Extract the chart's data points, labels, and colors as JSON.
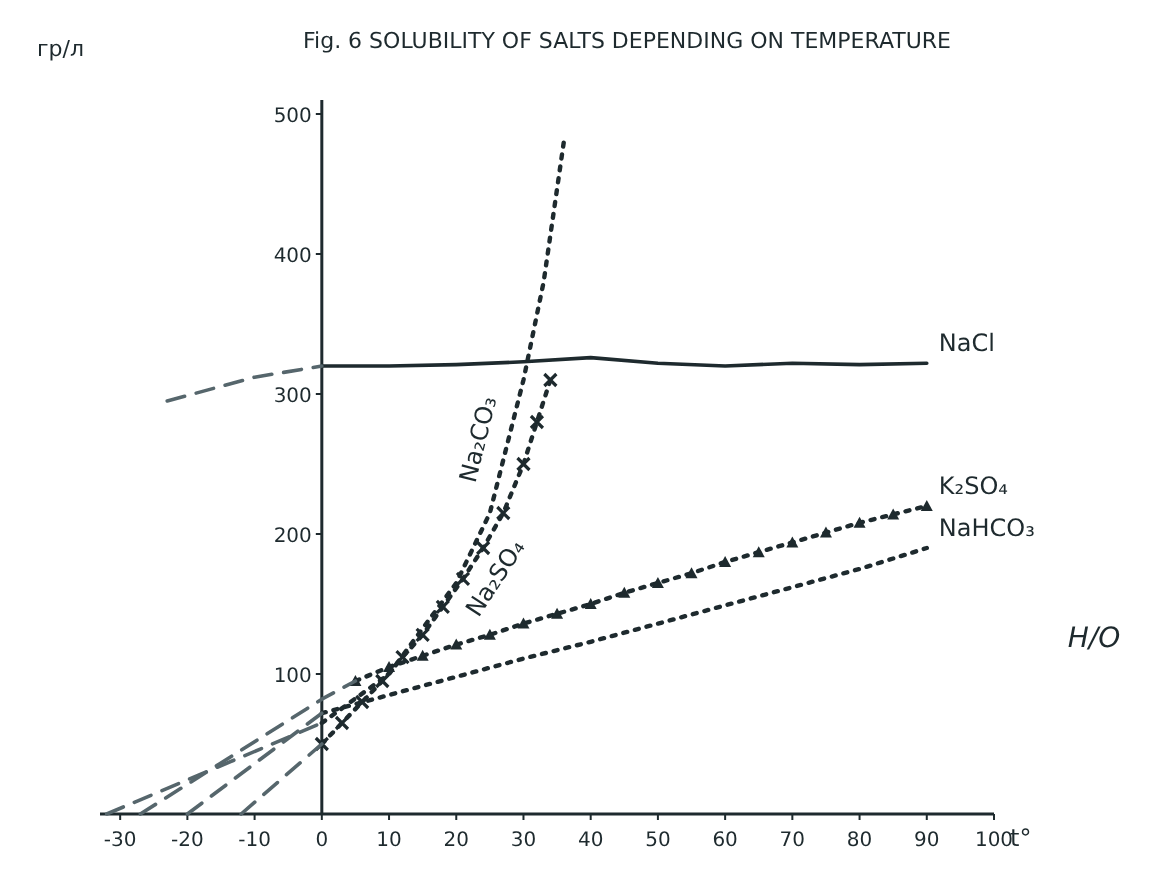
{
  "chart_data": {
    "type": "line",
    "title": "Fig. 6 SOLUBILITY OF SALTS DEPENDING ON TEMPERATURE",
    "ylabel": "гр/л",
    "xlabel": "t°",
    "annotations": [
      "H/O"
    ],
    "xlim": [
      -33,
      100
    ],
    "ylim": [
      0,
      510
    ],
    "xticks": [
      -30,
      -20,
      -10,
      0,
      10,
      20,
      30,
      40,
      50,
      60,
      70,
      80,
      90,
      100
    ],
    "yticks": [
      100,
      200,
      300,
      400,
      500
    ],
    "grid": false,
    "series": [
      {
        "name": "NaCl",
        "color": "#1e2a2e",
        "line_style": "solid",
        "marker": "none",
        "x": [
          0,
          10,
          20,
          30,
          40,
          50,
          60,
          70,
          80,
          90
        ],
        "values": [
          320,
          320,
          321,
          323,
          326,
          322,
          320,
          322,
          321,
          322
        ]
      },
      {
        "color": "#56666c",
        "line_style": "dashed",
        "marker": "none",
        "x": [
          -23,
          -10,
          0
        ],
        "values": [
          295,
          312,
          320
        ]
      },
      {
        "name": "Na₂CO₃",
        "color": "#1e2a2e",
        "line_style": "dotted",
        "marker": "none",
        "x": [
          0,
          10,
          20,
          25,
          30,
          33,
          36
        ],
        "values": [
          65,
          100,
          165,
          215,
          310,
          380,
          480
        ]
      },
      {
        "color": "#56666c",
        "line_style": "dashed",
        "marker": "none",
        "x": [
          -32,
          0
        ],
        "values": [
          0,
          65
        ]
      },
      {
        "name": "Na₂SO₄",
        "color": "#1e2a2e",
        "line_style": "dotted",
        "marker": "cross",
        "x": [
          0,
          3,
          6,
          9,
          12,
          15,
          18,
          21,
          24,
          27,
          30,
          32,
          34
        ],
        "values": [
          50,
          65,
          80,
          95,
          112,
          128,
          148,
          168,
          190,
          215,
          250,
          280,
          310
        ]
      },
      {
        "color": "#56666c",
        "line_style": "dashed",
        "marker": "none",
        "x": [
          -12,
          0
        ],
        "values": [
          0,
          50
        ]
      },
      {
        "name": "K₂SO₄",
        "color": "#1e2a2e",
        "line_style": "dotted",
        "marker": "triangle",
        "x": [
          5,
          10,
          15,
          20,
          25,
          30,
          35,
          40,
          45,
          50,
          55,
          60,
          65,
          70,
          75,
          80,
          85,
          90
        ],
        "values": [
          95,
          105,
          113,
          121,
          128,
          136,
          143,
          150,
          158,
          165,
          172,
          180,
          187,
          194,
          201,
          208,
          214,
          220
        ]
      },
      {
        "color": "#56666c",
        "line_style": "dashed",
        "marker": "none",
        "x": [
          -27,
          0,
          5
        ],
        "values": [
          0,
          82,
          95
        ]
      },
      {
        "name": "NaHCO₃",
        "color": "#1e2a2e",
        "line_style": "dotted",
        "marker": "none",
        "x": [
          0,
          10,
          20,
          30,
          40,
          50,
          60,
          70,
          80,
          90
        ],
        "values": [
          72,
          85,
          98,
          111,
          123,
          136,
          149,
          162,
          175,
          190
        ]
      },
      {
        "color": "#56666c",
        "line_style": "dashed",
        "marker": "none",
        "x": [
          -20,
          0
        ],
        "values": [
          0,
          72
        ]
      }
    ]
  }
}
